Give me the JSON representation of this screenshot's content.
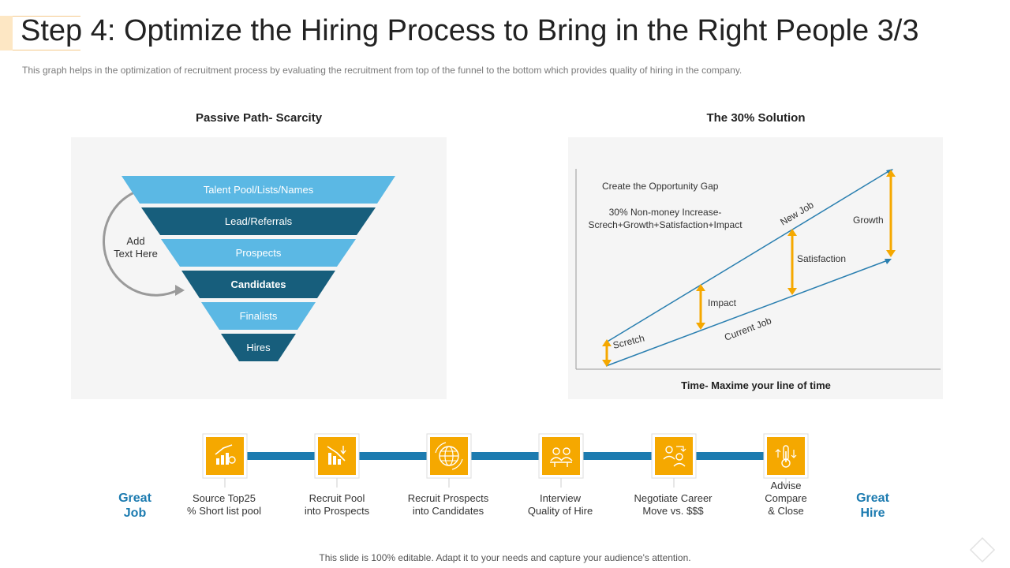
{
  "title": "Step 4: Optimize the Hiring Process to Bring in the Right People 3/3",
  "subtitle": "This graph helps in the optimization of recruitment process by evaluating  the recruitment from top of the funnel to the bottom which provides  quality of hiring in the company.",
  "funnel": {
    "heading": "Passive Path- Scarcity",
    "side_text": [
      "Add",
      "Text Here"
    ],
    "levels": [
      "Talent Pool/Lists/Names",
      "Lead/Referrals",
      "Prospects",
      "Candidates",
      "Finalists",
      "Hires"
    ],
    "colors": {
      "light": "#5bb8e4",
      "dark": "#175e7c"
    }
  },
  "solution": {
    "heading": "The 30% Solution",
    "gap_title": "Create the Opportunity Gap",
    "increase_line1": "30% Non-money Increase-",
    "increase_line2": "Screch+Growth+Satisfaction+Impact",
    "new_job": "New Job",
    "current_job": "Current Job",
    "labels": {
      "scretch": "Scretch",
      "impact": "Impact",
      "satisfaction": "Satisfaction",
      "growth": "Growth"
    },
    "axis_label": "Time- Maxime your line of time",
    "colors": {
      "line": "#2a7fb0",
      "arrow": "#f5a800"
    }
  },
  "process": {
    "start": [
      "Great",
      "Job"
    ],
    "end": [
      "Great",
      "Hire"
    ],
    "steps": [
      {
        "icon": "chart-growth-icon",
        "lines": [
          "Source Top25",
          "% Short list pool"
        ]
      },
      {
        "icon": "chart-decline-icon",
        "lines": [
          "Recruit Pool",
          "into Prospects"
        ]
      },
      {
        "icon": "globe-money-icon",
        "lines": [
          "Recruit Prospects",
          "into Candidates"
        ]
      },
      {
        "icon": "interview-icon",
        "lines": [
          "Interview",
          "Quality of Hire"
        ]
      },
      {
        "icon": "negotiation-icon",
        "lines": [
          "Negotiate Career",
          "Move vs. $$$"
        ]
      },
      {
        "icon": "thermometer-icon",
        "lines": [
          "Advise",
          "Compare",
          "& Close"
        ]
      }
    ],
    "colors": {
      "bar": "#1c7bb0",
      "icon_bg": "#f5a800"
    }
  },
  "footer": "This slide is 100% editable. Adapt it to your needs and capture your audience's attention."
}
